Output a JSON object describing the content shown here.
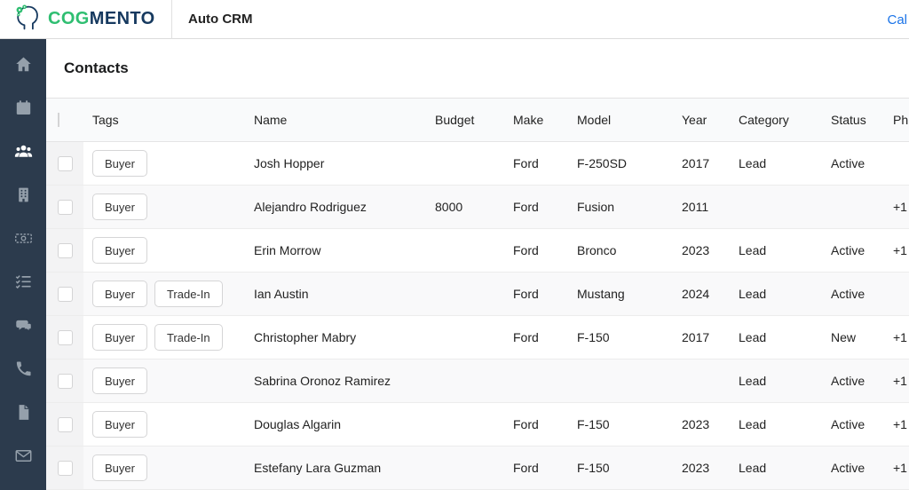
{
  "colors": {
    "brand_green": "#2fbe71",
    "brand_navy": "#16395f",
    "sidebar_bg": "#2c3b4d",
    "link_blue": "#1a73e8",
    "inactive_icon": "#95a0ab",
    "active_icon": "#ffffff",
    "zebra_row": "#f9f9fa",
    "header_row": "#f9fafb"
  },
  "topbar": {
    "brand": {
      "cog": "COG",
      "mento": "MENTO"
    },
    "app_name": "Auto CRM",
    "nav": {
      "calendar_link": "Cal"
    }
  },
  "sidebar": {
    "items": [
      {
        "name": "home",
        "active": false
      },
      {
        "name": "calendar",
        "active": false
      },
      {
        "name": "contacts",
        "active": true
      },
      {
        "name": "companies",
        "active": false
      },
      {
        "name": "deals",
        "active": false
      },
      {
        "name": "tasks",
        "active": false
      },
      {
        "name": "chat",
        "active": false
      },
      {
        "name": "calls",
        "active": false
      },
      {
        "name": "documents",
        "active": false
      },
      {
        "name": "mail",
        "active": false
      }
    ]
  },
  "page": {
    "title": "Contacts"
  },
  "table": {
    "columns": [
      {
        "key": "tags",
        "label": "Tags"
      },
      {
        "key": "name",
        "label": "Name"
      },
      {
        "key": "budget",
        "label": "Budget"
      },
      {
        "key": "make",
        "label": "Make"
      },
      {
        "key": "model",
        "label": "Model"
      },
      {
        "key": "year",
        "label": "Year"
      },
      {
        "key": "category",
        "label": "Category"
      },
      {
        "key": "status",
        "label": "Status"
      },
      {
        "key": "phone",
        "label": "Ph"
      }
    ],
    "rows": [
      {
        "tags": [
          "Buyer"
        ],
        "name": "Josh Hopper",
        "budget": "",
        "make": "Ford",
        "model": "F-250SD",
        "year": "2017",
        "category": "Lead",
        "status": "Active",
        "phone": ""
      },
      {
        "tags": [
          "Buyer"
        ],
        "name": "Alejandro Rodriguez",
        "budget": "8000",
        "make": "Ford",
        "model": "Fusion",
        "year": "2011",
        "category": "",
        "status": "",
        "phone": "+1"
      },
      {
        "tags": [
          "Buyer"
        ],
        "name": "Erin Morrow",
        "budget": "",
        "make": "Ford",
        "model": "Bronco",
        "year": "2023",
        "category": "Lead",
        "status": "Active",
        "phone": "+1"
      },
      {
        "tags": [
          "Buyer",
          "Trade-In"
        ],
        "name": "Ian Austin",
        "budget": "",
        "make": "Ford",
        "model": "Mustang",
        "year": "2024",
        "category": "Lead",
        "status": "Active",
        "phone": ""
      },
      {
        "tags": [
          "Buyer",
          "Trade-In"
        ],
        "name": "Christopher Mabry",
        "budget": "",
        "make": "Ford",
        "model": "F-150",
        "year": "2017",
        "category": "Lead",
        "status": "New",
        "phone": "+1"
      },
      {
        "tags": [
          "Buyer"
        ],
        "name": "Sabrina Oronoz Ramirez",
        "budget": "",
        "make": "",
        "model": "",
        "year": "",
        "category": "Lead",
        "status": "Active",
        "phone": "+1"
      },
      {
        "tags": [
          "Buyer"
        ],
        "name": "Douglas Algarin",
        "budget": "",
        "make": "Ford",
        "model": "F-150",
        "year": "2023",
        "category": "Lead",
        "status": "Active",
        "phone": "+1"
      },
      {
        "tags": [
          "Buyer"
        ],
        "name": "Estefany Lara Guzman",
        "budget": "",
        "make": "Ford",
        "model": "F-150",
        "year": "2023",
        "category": "Lead",
        "status": "Active",
        "phone": "+1"
      }
    ]
  }
}
